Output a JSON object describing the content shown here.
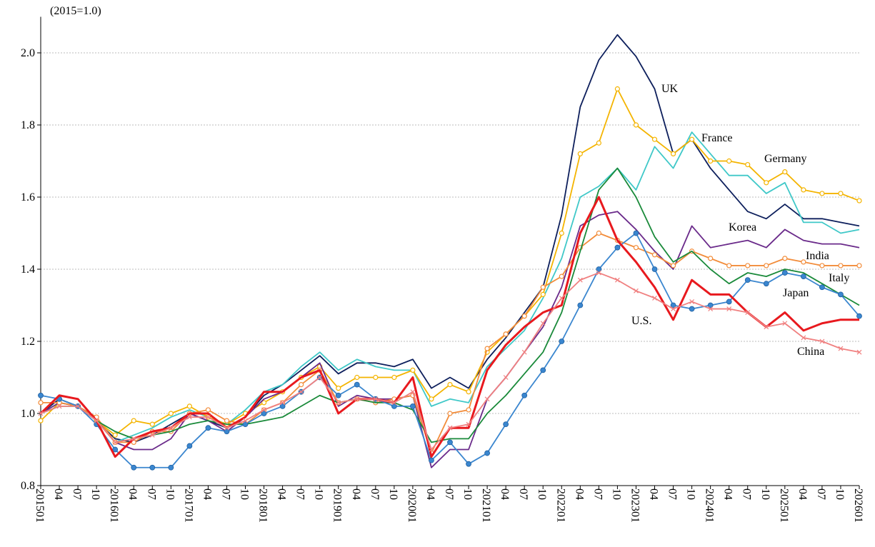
{
  "chart_data": {
    "type": "line",
    "y_axis_label": "(2015=1.0)",
    "categories": [
      "201501",
      "04",
      "07",
      "10",
      "201601",
      "04",
      "07",
      "10",
      "201701",
      "04",
      "07",
      "10",
      "201801",
      "04",
      "07",
      "10",
      "201901",
      "04",
      "07",
      "10",
      "202001",
      "04",
      "07",
      "10",
      "202101",
      "04",
      "07",
      "10",
      "202201",
      "04",
      "07",
      "10",
      "202301",
      "04",
      "07",
      "10",
      "202401",
      "04",
      "07",
      "10",
      "202501",
      "04",
      "07",
      "10",
      "202601"
    ],
    "ylim": [
      0.8,
      2.1
    ],
    "yticks": [
      0.8,
      {
        "value": 1,
        "label": "1.0"
      },
      1.2,
      1.4,
      1.6,
      1.8,
      {
        "value": 2,
        "label": "2.0"
      }
    ],
    "grid": true,
    "series": [
      {
        "name": "UK",
        "color": "#0d1f5c",
        "marker": "none",
        "values": [
          1.0,
          1.04,
          1.02,
          0.98,
          0.93,
          0.92,
          0.94,
          0.97,
          1.0,
          0.98,
          0.96,
          0.99,
          1.05,
          1.08,
          1.12,
          1.16,
          1.11,
          1.14,
          1.14,
          1.13,
          1.15,
          1.07,
          1.1,
          1.07,
          1.15,
          1.21,
          1.28,
          1.35,
          1.55,
          1.85,
          1.98,
          2.05,
          1.99,
          1.9,
          1.72,
          1.76,
          1.68,
          1.62,
          1.56,
          1.54,
          1.58,
          1.54,
          1.54,
          1.53,
          1.52
        ]
      },
      {
        "name": "France",
        "color": "#3fc8c8",
        "marker": "none",
        "values": [
          1.0,
          1.03,
          1.02,
          0.98,
          0.92,
          0.94,
          0.96,
          0.99,
          1.01,
          0.99,
          0.97,
          1.01,
          1.06,
          1.08,
          1.13,
          1.17,
          1.12,
          1.15,
          1.13,
          1.12,
          1.12,
          1.02,
          1.04,
          1.03,
          1.13,
          1.18,
          1.23,
          1.32,
          1.43,
          1.6,
          1.63,
          1.68,
          1.62,
          1.74,
          1.68,
          1.78,
          1.72,
          1.66,
          1.66,
          1.61,
          1.64,
          1.53,
          1.53,
          1.5,
          1.51
        ]
      },
      {
        "name": "Germany",
        "color": "#f4b400",
        "marker": "hollow",
        "values": [
          0.98,
          1.03,
          1.02,
          0.98,
          0.94,
          0.98,
          0.97,
          1.0,
          1.02,
          0.99,
          0.97,
          1.0,
          1.03,
          1.06,
          1.1,
          1.13,
          1.07,
          1.1,
          1.1,
          1.1,
          1.12,
          1.04,
          1.08,
          1.06,
          1.17,
          1.22,
          1.27,
          1.33,
          1.5,
          1.72,
          1.75,
          1.9,
          1.8,
          1.76,
          1.72,
          1.76,
          1.7,
          1.7,
          1.69,
          1.64,
          1.67,
          1.62,
          1.61,
          1.61,
          1.59
        ]
      },
      {
        "name": "Korea",
        "color": "#6a2a8a",
        "marker": "none",
        "values": [
          1.0,
          1.03,
          1.02,
          0.98,
          0.92,
          0.9,
          0.9,
          0.93,
          1.0,
          0.98,
          0.95,
          0.99,
          1.04,
          1.06,
          1.1,
          1.14,
          1.02,
          1.05,
          1.04,
          1.04,
          1.05,
          0.85,
          0.9,
          0.9,
          1.04,
          1.1,
          1.17,
          1.24,
          1.35,
          1.52,
          1.55,
          1.56,
          1.51,
          1.45,
          1.4,
          1.52,
          1.46,
          1.47,
          1.48,
          1.46,
          1.51,
          1.48,
          1.47,
          1.47,
          1.46
        ]
      },
      {
        "name": "India",
        "color": "#f28c3a",
        "marker": "hollow",
        "values": [
          1.03,
          1.03,
          1.02,
          0.99,
          0.92,
          0.92,
          0.95,
          0.95,
          1.0,
          1.01,
          0.98,
          0.97,
          1.01,
          1.03,
          1.08,
          1.12,
          1.03,
          1.04,
          1.03,
          1.04,
          1.05,
          0.89,
          1.0,
          1.01,
          1.18,
          1.22,
          1.27,
          1.35,
          1.38,
          1.46,
          1.5,
          1.48,
          1.46,
          1.44,
          1.41,
          1.45,
          1.43,
          1.41,
          1.41,
          1.41,
          1.43,
          1.42,
          1.41,
          1.41,
          1.41
        ]
      },
      {
        "name": "Italy",
        "color": "#1a8a3a",
        "marker": "none",
        "values": [
          1.0,
          1.02,
          1.02,
          0.98,
          0.95,
          0.93,
          0.94,
          0.95,
          0.97,
          0.98,
          0.97,
          0.97,
          0.98,
          0.99,
          1.02,
          1.05,
          1.03,
          1.04,
          1.03,
          1.03,
          1.01,
          0.92,
          0.93,
          0.93,
          1.0,
          1.05,
          1.11,
          1.17,
          1.28,
          1.45,
          1.62,
          1.68,
          1.6,
          1.49,
          1.42,
          1.45,
          1.4,
          1.36,
          1.39,
          1.38,
          1.4,
          1.39,
          1.36,
          1.33,
          1.3
        ]
      },
      {
        "name": "Japan",
        "color": "#3a86cf",
        "marker": "filled",
        "values": [
          1.05,
          1.04,
          1.02,
          0.97,
          0.9,
          0.85,
          0.85,
          0.85,
          0.91,
          0.96,
          0.95,
          0.97,
          1.0,
          1.02,
          1.06,
          1.1,
          1.05,
          1.08,
          1.04,
          1.02,
          1.02,
          0.87,
          0.92,
          0.86,
          0.89,
          0.97,
          1.05,
          1.12,
          1.2,
          1.3,
          1.4,
          1.46,
          1.5,
          1.4,
          1.3,
          1.29,
          1.3,
          1.31,
          1.37,
          1.36,
          1.39,
          1.38,
          1.35,
          1.33,
          1.27
        ]
      },
      {
        "name": "U.S.",
        "color": "#e8191e",
        "marker": "none",
        "width": 3,
        "values": [
          1.0,
          1.05,
          1.04,
          0.98,
          0.88,
          0.93,
          0.95,
          0.96,
          1.0,
          1.0,
          0.96,
          0.99,
          1.06,
          1.06,
          1.1,
          1.12,
          1.0,
          1.04,
          1.04,
          1.03,
          1.1,
          0.88,
          0.96,
          0.96,
          1.12,
          1.19,
          1.24,
          1.28,
          1.3,
          1.5,
          1.6,
          1.48,
          1.42,
          1.35,
          1.26,
          1.37,
          1.33,
          1.33,
          1.28,
          1.24,
          1.28,
          1.23,
          1.25,
          1.26,
          1.26
        ]
      },
      {
        "name": "China",
        "color": "#f08080",
        "marker": "cross",
        "values": [
          1.0,
          1.02,
          1.02,
          0.98,
          0.92,
          0.93,
          0.94,
          0.96,
          0.99,
          0.99,
          0.96,
          0.98,
          1.01,
          1.03,
          1.06,
          1.1,
          1.03,
          1.04,
          1.04,
          1.03,
          1.06,
          0.9,
          0.96,
          0.97,
          1.04,
          1.1,
          1.17,
          1.25,
          1.32,
          1.37,
          1.39,
          1.37,
          1.34,
          1.32,
          1.29,
          1.31,
          1.29,
          1.29,
          1.28,
          1.24,
          1.25,
          1.21,
          1.2,
          1.18,
          1.17
        ]
      }
    ]
  }
}
